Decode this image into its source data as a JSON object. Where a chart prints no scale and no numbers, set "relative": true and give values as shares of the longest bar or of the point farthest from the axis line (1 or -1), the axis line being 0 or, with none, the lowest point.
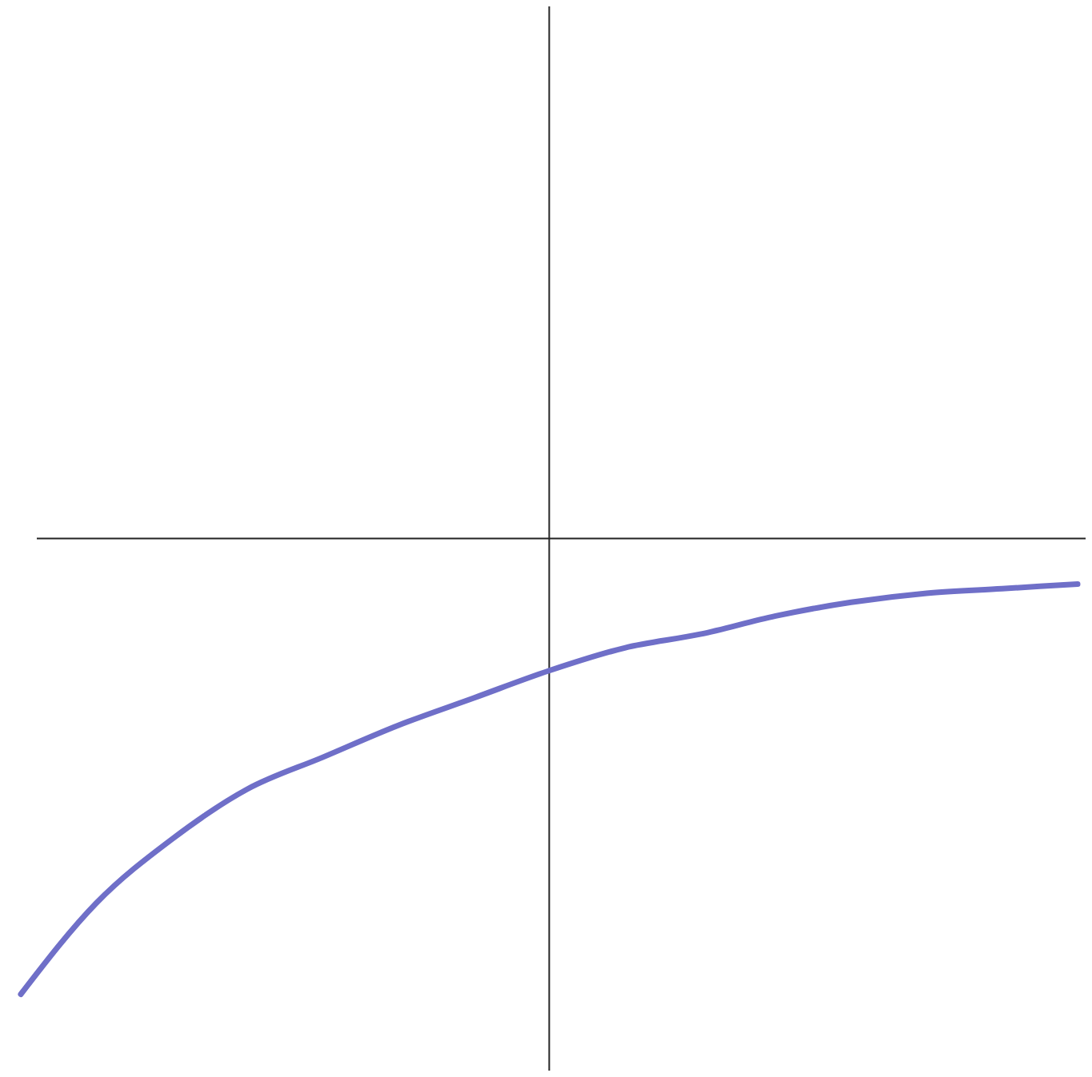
{
  "chart_data": {
    "type": "line",
    "relative": true,
    "categories": [
      null,
      null,
      null,
      null,
      null,
      null,
      null,
      null,
      null,
      null,
      null,
      null,
      null,
      null,
      null
    ],
    "series": [
      {
        "color": "#6f6fc8",
        "values": [
          -1,
          -0.8,
          -0.66,
          -0.55,
          -0.48,
          -0.41,
          -0.35,
          -0.29,
          -0.24,
          -0.21,
          -0.17,
          -0.14,
          -0.12,
          -0.11,
          -0.1
        ]
      }
    ]
  }
}
